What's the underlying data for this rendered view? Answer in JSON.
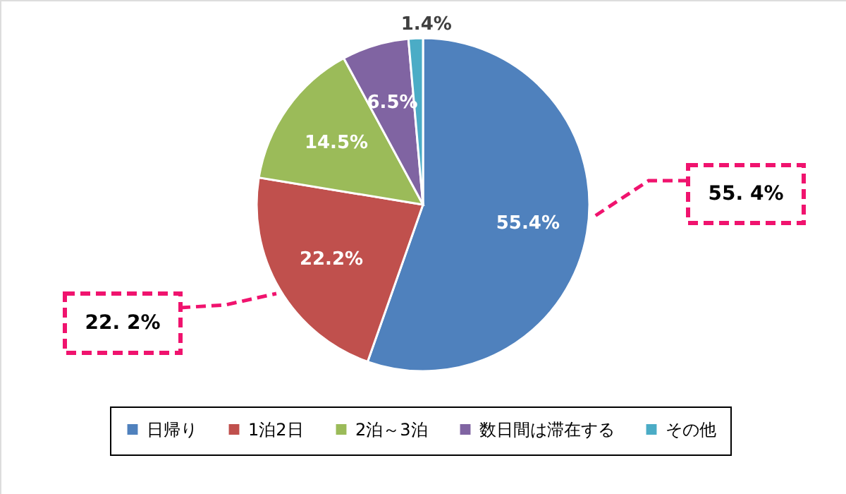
{
  "chart_data": {
    "type": "pie",
    "categories": [
      "日帰り",
      "1泊2日",
      "2泊～3泊",
      "数日間は滞在する",
      "その他"
    ],
    "values": [
      55.4,
      22.2,
      14.5,
      6.5,
      1.4
    ],
    "colors": [
      "#4f81bd",
      "#c0504d",
      "#9bbb59",
      "#8064a2",
      "#4bacc6"
    ],
    "value_labels": [
      "55.4%",
      "22.2%",
      "14.5%",
      "6.5%",
      "1.4%"
    ],
    "annotations": [
      "55. 4%",
      "22. 2%"
    ],
    "legend": "bottom"
  }
}
